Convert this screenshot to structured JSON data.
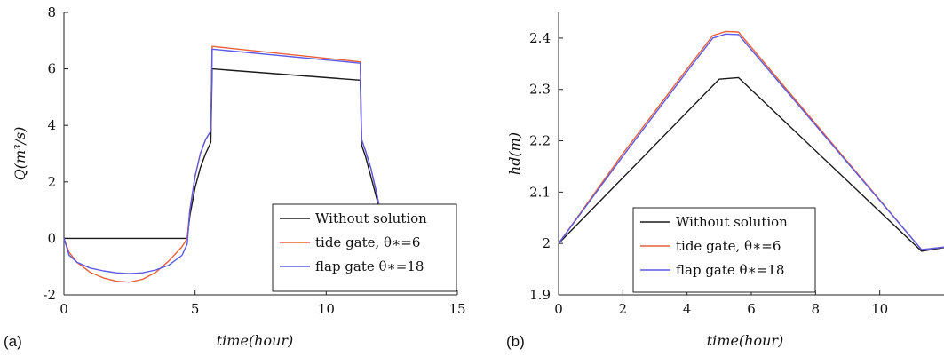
{
  "chart_data": [
    {
      "type": "line",
      "panel_label": "(a)",
      "xlabel": "time(hour)",
      "ylabel": "Q(m³/s)",
      "xlim": [
        0,
        15
      ],
      "ylim": [
        -2,
        8
      ],
      "xticks": [
        "0",
        "5",
        "10",
        "15"
      ],
      "yticks": [
        "-2",
        "0",
        "2",
        "4",
        "6",
        "8"
      ],
      "grid": false,
      "legend_position": "bottom-right",
      "series": [
        {
          "name": "Without solution",
          "color": "#1a1a1a",
          "x": [
            0,
            4.7,
            4.8,
            5.0,
            5.2,
            5.4,
            5.6,
            5.65,
            11.3,
            11.35,
            11.5,
            11.7,
            11.9,
            12.1
          ],
          "y": [
            0,
            0,
            0.8,
            1.8,
            2.5,
            3.0,
            3.4,
            6.0,
            5.6,
            3.3,
            2.9,
            2.2,
            1.5,
            0.8
          ]
        },
        {
          "name": "tide gate, θ∗=6",
          "color": "#e8603c",
          "x": [
            0,
            0.2,
            0.5,
            1.0,
            1.5,
            2.0,
            2.5,
            3.0,
            3.5,
            4.0,
            4.5,
            4.7,
            4.8,
            5.0,
            5.2,
            5.4,
            5.6,
            5.65,
            11.3,
            11.35,
            11.5,
            11.7,
            11.9,
            12.1
          ],
          "y": [
            0,
            -0.5,
            -0.85,
            -1.2,
            -1.4,
            -1.52,
            -1.55,
            -1.45,
            -1.2,
            -0.8,
            -0.3,
            0,
            1.0,
            2.2,
            3.0,
            3.5,
            3.8,
            6.8,
            6.25,
            3.5,
            3.1,
            2.5,
            1.7,
            0.8
          ]
        },
        {
          "name": "flap gate θ∗=18",
          "color": "#5b5be6",
          "x": [
            0,
            0.2,
            0.5,
            1.0,
            1.5,
            2.0,
            2.5,
            3.0,
            3.5,
            4.0,
            4.5,
            4.7,
            4.8,
            5.0,
            5.2,
            5.4,
            5.6,
            5.65,
            11.3,
            11.35,
            11.5,
            11.7,
            11.9,
            12.1
          ],
          "y": [
            0,
            -0.6,
            -0.85,
            -1.05,
            -1.15,
            -1.22,
            -1.25,
            -1.22,
            -1.12,
            -0.95,
            -0.6,
            -0.2,
            1.0,
            2.2,
            3.0,
            3.5,
            3.8,
            6.7,
            6.2,
            3.5,
            3.1,
            2.5,
            1.7,
            0.8
          ]
        }
      ]
    },
    {
      "type": "line",
      "panel_label": "(b)",
      "xlabel": "time(hour)",
      "ylabel": "hd(m)",
      "xlim": [
        0,
        12
      ],
      "ylim": [
        1.9,
        2.45
      ],
      "xticks": [
        "0",
        "2",
        "4",
        "6",
        "8",
        "10"
      ],
      "yticks": [
        "1.9",
        "2",
        "2.1",
        "2.2",
        "2.3",
        "2.4"
      ],
      "grid": false,
      "legend_position": "bottom-center",
      "series": [
        {
          "name": "Without solution",
          "color": "#1a1a1a",
          "x": [
            0,
            5.0,
            5.6,
            11.3,
            11.6,
            12.0
          ],
          "y": [
            2.0,
            2.32,
            2.323,
            1.985,
            1.988,
            1.992
          ]
        },
        {
          "name": "tide gate, θ∗=6",
          "color": "#e8603c",
          "x": [
            0,
            2.0,
            4.0,
            4.8,
            5.2,
            5.6,
            11.3,
            11.6,
            12.0
          ],
          "y": [
            2.0,
            2.175,
            2.34,
            2.405,
            2.413,
            2.412,
            1.988,
            1.99,
            1.993
          ]
        },
        {
          "name": "flap gate θ∗=18",
          "color": "#5b5be6",
          "x": [
            0,
            2.0,
            4.0,
            4.8,
            5.2,
            5.6,
            11.3,
            11.6,
            12.0
          ],
          "y": [
            2.0,
            2.17,
            2.335,
            2.4,
            2.408,
            2.407,
            1.988,
            1.99,
            1.993
          ]
        }
      ]
    }
  ]
}
